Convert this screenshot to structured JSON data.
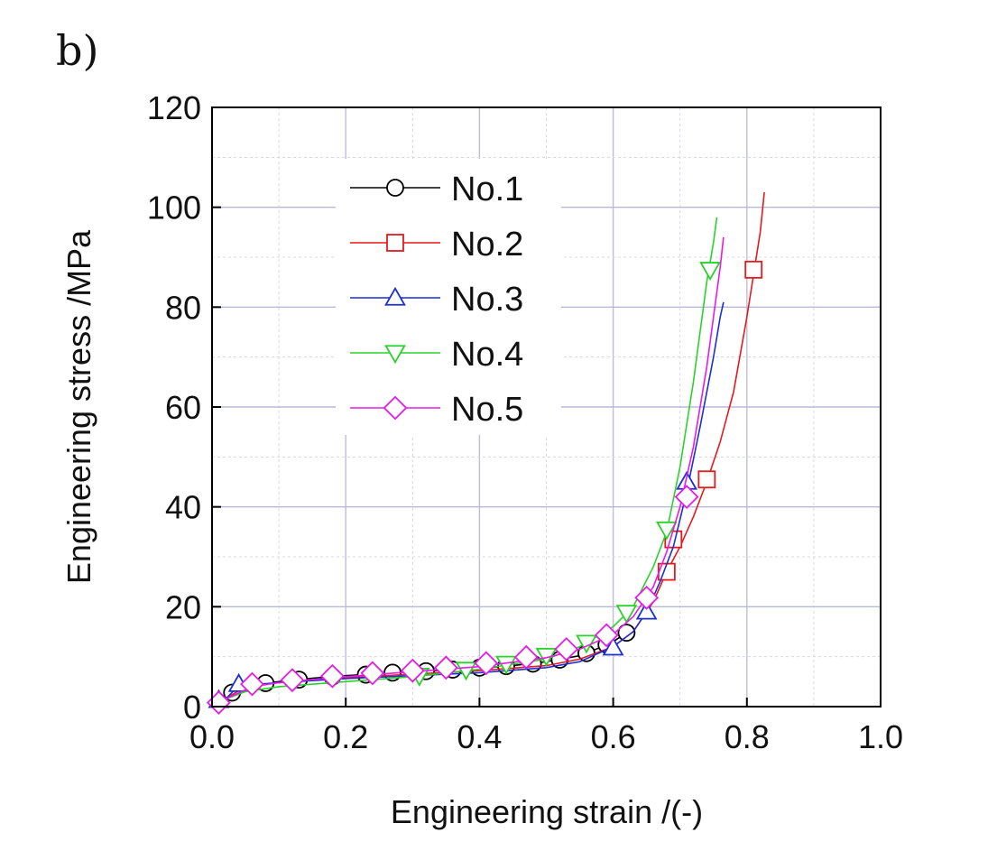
{
  "panel_label": "b)",
  "chart_data": {
    "type": "line",
    "xlabel": "Engineering strain /(-)",
    "ylabel": "Engineering stress /MPa",
    "xlim": [
      0.0,
      1.0
    ],
    "ylim": [
      0,
      120
    ],
    "xticks": [
      0.0,
      0.2,
      0.4,
      0.6,
      0.8,
      1.0
    ],
    "xtick_labels": [
      "0.0",
      "0.2",
      "0.4",
      "0.6",
      "0.8",
      "1.0"
    ],
    "yticks": [
      0,
      20,
      40,
      60,
      80,
      100,
      120
    ],
    "ytick_labels": [
      "0",
      "20",
      "40",
      "60",
      "80",
      "100",
      "120"
    ],
    "grid": true,
    "legend_position": "upper-left",
    "series": [
      {
        "name": "No.1",
        "color": "#000000",
        "marker": "circle",
        "x": [
          0.0,
          0.02,
          0.05,
          0.1,
          0.15,
          0.2,
          0.25,
          0.3,
          0.35,
          0.4,
          0.45,
          0.5,
          0.55,
          0.58,
          0.6,
          0.62,
          0.63
        ],
        "y": [
          0,
          2.5,
          4.2,
          5.0,
          5.7,
          6.2,
          6.6,
          7.0,
          7.3,
          7.7,
          8.2,
          9.0,
          10.2,
          11.8,
          13.0,
          14.8,
          16.0
        ],
        "markers_x": [
          0.03,
          0.08,
          0.13,
          0.18,
          0.23,
          0.27,
          0.32,
          0.36,
          0.4,
          0.44,
          0.48,
          0.52,
          0.56,
          0.59,
          0.62
        ],
        "markers_y": [
          2.8,
          4.7,
          5.4,
          6.0,
          6.4,
          6.8,
          7.1,
          7.4,
          7.8,
          8.1,
          8.6,
          9.4,
          10.7,
          12.4,
          14.8
        ]
      },
      {
        "name": "No.2",
        "color": "#e41a1c",
        "marker": "square",
        "x": [
          0.0,
          0.05,
          0.1,
          0.2,
          0.3,
          0.4,
          0.5,
          0.55,
          0.6,
          0.63,
          0.66,
          0.68,
          0.7,
          0.72,
          0.74,
          0.76,
          0.78,
          0.8,
          0.82,
          0.826
        ],
        "y": [
          0,
          4.0,
          4.8,
          5.8,
          6.5,
          7.2,
          8.2,
          9.5,
          12.0,
          15.0,
          21.0,
          27.0,
          32.0,
          38.0,
          45.0,
          53.0,
          63.0,
          78.0,
          95.0,
          103.0
        ],
        "markers_x": [
          0.68,
          0.69,
          0.74,
          0.81
        ],
        "markers_y": [
          27.0,
          33.5,
          45.5,
          87.5
        ]
      },
      {
        "name": "No.3",
        "color": "#1c2fd4",
        "marker": "triangle-up",
        "x": [
          0.0,
          0.02,
          0.04,
          0.1,
          0.2,
          0.3,
          0.4,
          0.5,
          0.55,
          0.6,
          0.63,
          0.65,
          0.67,
          0.69,
          0.71,
          0.73,
          0.75,
          0.76,
          0.765
        ],
        "y": [
          0,
          1.5,
          4.2,
          4.8,
          5.6,
          6.2,
          6.8,
          7.8,
          9.0,
          12.0,
          15.0,
          19.0,
          25.0,
          32.0,
          43.0,
          56.0,
          70.0,
          78.0,
          81.0
        ],
        "markers_x": [
          0.01,
          0.04,
          0.6,
          0.65,
          0.71
        ],
        "markers_y": [
          1.3,
          4.5,
          11.8,
          19.0,
          45.0
        ]
      },
      {
        "name": "No.4",
        "color": "#2bd12b",
        "marker": "triangle-down",
        "x": [
          0.0,
          0.02,
          0.05,
          0.1,
          0.2,
          0.3,
          0.4,
          0.5,
          0.55,
          0.6,
          0.63,
          0.66,
          0.68,
          0.7,
          0.72,
          0.74,
          0.75,
          0.755
        ],
        "y": [
          0,
          1.5,
          3.0,
          4.0,
          5.0,
          6.0,
          7.5,
          9.5,
          12.0,
          16.0,
          20.0,
          28.0,
          35.0,
          48.0,
          65.0,
          85.0,
          93.0,
          98.0
        ],
        "markers_x": [
          0.31,
          0.38,
          0.44,
          0.5,
          0.56,
          0.62,
          0.68,
          0.745
        ],
        "markers_y": [
          6.2,
          7.4,
          8.6,
          10.2,
          12.8,
          18.8,
          35.5,
          87.5
        ]
      },
      {
        "name": "No.5",
        "color": "#e61ce6",
        "marker": "diamond",
        "x": [
          0.0,
          0.02,
          0.06,
          0.1,
          0.2,
          0.3,
          0.4,
          0.5,
          0.55,
          0.6,
          0.63,
          0.66,
          0.68,
          0.7,
          0.72,
          0.74,
          0.76,
          0.765
        ],
        "y": [
          0,
          1.5,
          4.0,
          4.8,
          6.0,
          7.0,
          8.0,
          9.8,
          11.5,
          14.5,
          18.0,
          24.0,
          31.0,
          40.0,
          52.0,
          68.0,
          88.0,
          94.0
        ],
        "markers_x": [
          0.01,
          0.06,
          0.12,
          0.18,
          0.24,
          0.3,
          0.35,
          0.41,
          0.47,
          0.53,
          0.59,
          0.65,
          0.71
        ],
        "markers_y": [
          0.8,
          4.5,
          5.3,
          6.1,
          6.7,
          7.2,
          7.8,
          8.7,
          9.9,
          11.5,
          14.3,
          21.8,
          42.0
        ]
      }
    ]
  }
}
